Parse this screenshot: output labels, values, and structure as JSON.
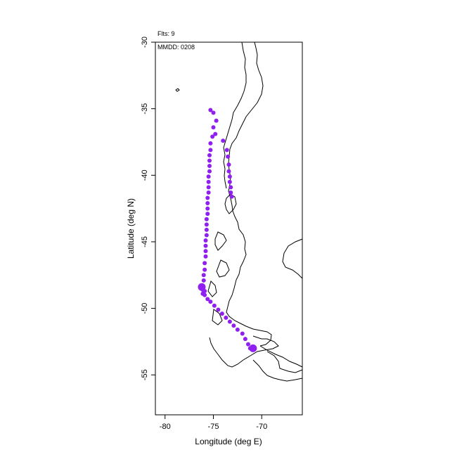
{
  "chart_data": {
    "type": "scatter",
    "title": "",
    "xlabel": "Longitude (deg E)",
    "ylabel": "Latitude (deg N)",
    "xlim": [
      -81.0,
      -65.8
    ],
    "ylim": [
      -58.0,
      -30.0
    ],
    "x_ticks": [
      -80,
      -75,
      -70
    ],
    "x_tick_labels": [
      "-80",
      "-75",
      "-70"
    ],
    "y_ticks": [
      -30,
      -35,
      -40,
      -45,
      -50,
      -55
    ],
    "y_tick_labels": [
      "-30",
      "-35",
      "-40",
      "-45",
      "-50",
      "-55"
    ],
    "grid": false,
    "annotations": {
      "flights": "Flts: 9",
      "date": "MMDD: 0208"
    },
    "series": [
      {
        "color": "#9020f0",
        "points": [
          [
            -75.3,
            -35.1
          ],
          [
            -75.0,
            -35.3
          ],
          [
            -74.7,
            -35.9
          ],
          [
            -75.0,
            -36.4
          ],
          [
            -74.8,
            -36.9
          ],
          [
            -75.1,
            -37.1
          ],
          [
            -75.3,
            -37.6
          ],
          [
            -75.3,
            -38.1
          ],
          [
            -75.4,
            -38.5
          ],
          [
            -75.4,
            -38.9
          ],
          [
            -75.4,
            -39.3
          ],
          [
            -75.4,
            -39.7
          ],
          [
            -75.5,
            -40.1
          ],
          [
            -75.5,
            -40.5
          ],
          [
            -75.5,
            -40.9
          ],
          [
            -75.5,
            -41.3
          ],
          [
            -75.6,
            -41.7
          ],
          [
            -75.6,
            -42.1
          ],
          [
            -75.6,
            -42.5
          ],
          [
            -75.6,
            -42.9
          ],
          [
            -75.7,
            -43.3
          ],
          [
            -75.7,
            -43.7
          ],
          [
            -75.7,
            -44.1
          ],
          [
            -75.7,
            -44.5
          ],
          [
            -75.8,
            -44.9
          ],
          [
            -75.8,
            -45.3
          ],
          [
            -75.8,
            -45.7
          ],
          [
            -75.8,
            -46.1
          ],
          [
            -75.9,
            -46.6
          ],
          [
            -75.9,
            -47.1
          ],
          [
            -76.0,
            -47.5
          ],
          [
            -76.0,
            -47.9
          ],
          [
            -76.1,
            -48.3
          ],
          [
            -76.1,
            -48.6
          ],
          [
            -76.1,
            -48.9
          ],
          [
            -75.9,
            -48.7
          ],
          [
            -75.9,
            -49.0
          ],
          [
            -75.6,
            -49.3
          ],
          [
            -75.3,
            -49.5
          ],
          [
            -74.9,
            -49.8
          ],
          [
            -74.5,
            -50.1
          ],
          [
            -74.1,
            -50.4
          ],
          [
            -73.7,
            -50.7
          ],
          [
            -73.3,
            -51.0
          ],
          [
            -72.9,
            -51.3
          ],
          [
            -72.5,
            -51.6
          ],
          [
            -72.0,
            -51.9
          ],
          [
            -71.7,
            -52.3
          ],
          [
            -71.4,
            -52.7
          ],
          [
            -71.2,
            -53.0
          ],
          [
            -74.0,
            -37.4
          ],
          [
            -73.6,
            -38.1
          ],
          [
            -73.5,
            -38.6
          ],
          [
            -73.4,
            -39.2
          ],
          [
            -73.4,
            -39.7
          ],
          [
            -73.3,
            -40.1
          ],
          [
            -73.3,
            -40.5
          ],
          [
            -73.2,
            -40.9
          ],
          [
            -73.2,
            -41.3
          ],
          [
            -73.1,
            -41.6
          ]
        ]
      },
      {
        "color": "#9020f0",
        "points": [
          [
            -76.2,
            -48.4
          ],
          [
            -70.9,
            -53.0
          ]
        ]
      }
    ]
  }
}
